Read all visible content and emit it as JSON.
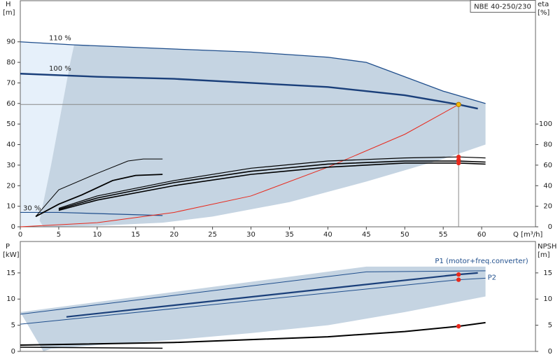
{
  "chart_data": [
    {
      "type": "line",
      "title": "NBE 40-250/230",
      "x_label": "Q [m³/h]",
      "y_label": "H",
      "y_unit": "[m]",
      "y2_label": "eta",
      "y2_unit": "[%]",
      "xlim": [
        0,
        67
      ],
      "ylim": [
        0,
        110
      ],
      "y2lim": [
        0,
        220
      ],
      "xticks": [
        0,
        5,
        10,
        15,
        20,
        25,
        30,
        35,
        40,
        45,
        50,
        55,
        60
      ],
      "yticks": [
        0,
        10,
        20,
        30,
        40,
        50,
        60,
        70,
        80,
        90
      ],
      "y2ticks": [
        0,
        20,
        40,
        60,
        80,
        100
      ],
      "regions": [
        {
          "color": "#e6f0fa",
          "x": [
            0,
            7,
            6.5,
            5.5,
            4,
            2.5,
            3,
            0
          ],
          "values": [
            90,
            88.5,
            80,
            60,
            30,
            3,
            0,
            0
          ]
        },
        {
          "color": "#c5d4e2",
          "x": [
            7,
            20,
            30,
            40,
            45,
            55,
            60.5,
            60.5,
            55,
            45,
            35,
            25,
            18.5,
            10,
            3,
            2.5,
            4,
            5.5,
            6.5
          ],
          "values": [
            88.5,
            86.5,
            85,
            82.5,
            80,
            66,
            60,
            40,
            33,
            22,
            12,
            5,
            2,
            0.5,
            0,
            3,
            30,
            60,
            80
          ]
        }
      ],
      "series": [
        {
          "name": "110 %",
          "color": "#1f4e8c",
          "width": 1.3,
          "x": [
            0,
            7,
            20,
            30,
            40,
            45,
            55,
            60.5
          ],
          "values": [
            90,
            88.5,
            86.5,
            85,
            82.5,
            80,
            66,
            60
          ]
        },
        {
          "name": "100 %",
          "color": "#1a3f7a",
          "width": 2.4,
          "x": [
            0,
            10,
            20,
            30,
            40,
            45,
            50,
            57,
            59.5
          ],
          "values": [
            74.5,
            73,
            72,
            70,
            68,
            66,
            64,
            59.5,
            57.5
          ]
        },
        {
          "name": "30 %",
          "color": "#1f4e8c",
          "width": 1.2,
          "x": [
            0,
            5,
            18.5
          ],
          "values": [
            7,
            7,
            5.5
          ]
        },
        {
          "color": "#e8291c",
          "width": 1,
          "x": [
            0,
            10,
            20,
            30,
            40,
            50,
            57
          ],
          "values": [
            0,
            2,
            7,
            15,
            29,
            45,
            59.5
          ]
        },
        {
          "color": "#000000",
          "width": 1.6,
          "axis": "y2",
          "x": [
            5,
            10,
            20,
            30,
            40,
            50,
            57,
            60.5
          ],
          "values": [
            16,
            26,
            40,
            51,
            58,
            62,
            62,
            61
          ]
        },
        {
          "color": "#000000",
          "width": 1.6,
          "axis": "y2",
          "x": [
            5,
            10,
            20,
            30,
            40,
            50,
            57,
            60.5
          ],
          "values": [
            17,
            28,
            43,
            54,
            61,
            64,
            64,
            63
          ]
        },
        {
          "color": "#000000",
          "width": 1.2,
          "axis": "y2",
          "x": [
            5,
            10,
            20,
            30,
            40,
            50,
            57,
            60.5
          ],
          "values": [
            18,
            30,
            45,
            57,
            64,
            67,
            68,
            67
          ]
        },
        {
          "color": "#000000",
          "width": 1,
          "axis": "y2",
          "x": [
            2,
            5,
            10,
            14,
            16,
            18.5
          ],
          "values": [
            10,
            36,
            52,
            64,
            66,
            66
          ]
        },
        {
          "color": "#000000",
          "width": 1.8,
          "axis": "y2",
          "x": [
            2,
            5,
            8,
            12,
            15,
            18.5
          ],
          "values": [
            10,
            22,
            31,
            45,
            50,
            51
          ]
        }
      ],
      "points": [
        {
          "x": 57,
          "value": 59.5,
          "color": "#f5b800"
        },
        {
          "x": 57,
          "value": 68,
          "color": "#e8291c",
          "axis": "y2"
        },
        {
          "x": 57,
          "value": 65,
          "color": "#e8291c",
          "axis": "y2"
        },
        {
          "x": 57,
          "value": 62,
          "color": "#e8291c",
          "axis": "y2"
        }
      ]
    },
    {
      "type": "line",
      "y_label": "P",
      "y_unit": "[kW]",
      "y2_label": "NPSH",
      "y2_unit": "[m]",
      "xlim": [
        0,
        67
      ],
      "ylim": [
        0,
        21
      ],
      "y2lim": [
        0,
        21
      ],
      "yticks": [
        0,
        5,
        10,
        15
      ],
      "y2ticks": [
        0,
        5,
        10,
        15
      ],
      "regions": [
        {
          "color": "#c5d4e2",
          "x": [
            0,
            45,
            60.5,
            60.5,
            50,
            40,
            30,
            20,
            10,
            4,
            3
          ],
          "values": [
            7.5,
            16.2,
            16.2,
            10.5,
            7.5,
            5,
            3.5,
            2.2,
            1.2,
            0.5,
            0
          ]
        }
      ],
      "series": [
        {
          "color": "#1f4e8c",
          "width": 1,
          "x": [
            0,
            45,
            60.5
          ],
          "values": [
            7.1,
            15.2,
            15.4
          ]
        },
        {
          "name": "P1 (motor+freq.converter)",
          "color": "#1a3f7a",
          "width": 2.2,
          "x": [
            6,
            57,
            59.5
          ],
          "values": [
            6.6,
            14.7,
            15
          ]
        },
        {
          "name": "P2",
          "color": "#1f4e8c",
          "width": 1,
          "x": [
            0,
            57,
            60.5
          ],
          "values": [
            5.2,
            13.7,
            14
          ]
        },
        {
          "color": "#000000",
          "width": 2,
          "axis": "y2",
          "x": [
            0,
            20,
            40,
            50,
            57,
            60.5
          ],
          "values": [
            1.2,
            1.7,
            2.8,
            3.8,
            4.8,
            5.5
          ]
        },
        {
          "color": "#000000",
          "width": 1.5,
          "x": [
            0,
            18.5
          ],
          "values": [
            0.8,
            0.6
          ]
        }
      ],
      "points": [
        {
          "x": 57,
          "value": 14.7,
          "color": "#e8291c"
        },
        {
          "x": 57,
          "value": 13.7,
          "color": "#e8291c"
        },
        {
          "x": 57,
          "value": 4.8,
          "color": "#e8291c",
          "axis": "y2"
        }
      ]
    }
  ]
}
